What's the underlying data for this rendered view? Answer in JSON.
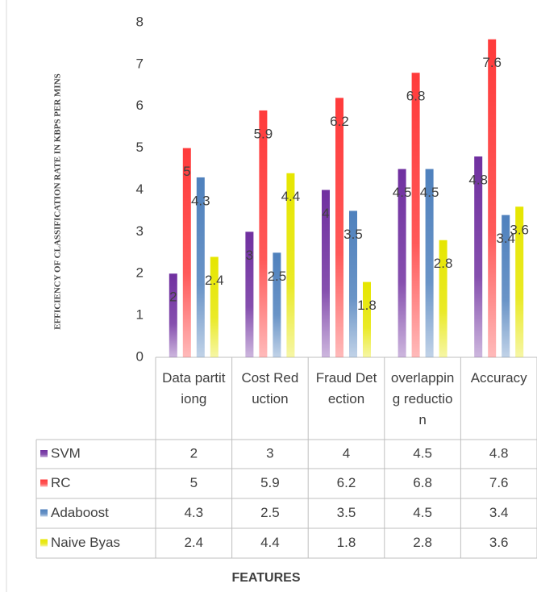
{
  "chart_data": {
    "type": "bar",
    "y_label": "EFFICIENCY OF CLASSIFICATION RATE IN KBPS PER MINS",
    "x_label": "FEATURES",
    "categories": [
      "Data partitiong",
      "Cost Reduction",
      "Fraud Detection",
      "overlapping reduction",
      "Accuracy"
    ],
    "series": [
      {
        "name": "SVM",
        "color": "#7030a0",
        "values": [
          2,
          3,
          4,
          4.5,
          4.8
        ]
      },
      {
        "name": "RC",
        "color": "#ff3b3b",
        "values": [
          5,
          5.9,
          6.2,
          6.8,
          7.6
        ]
      },
      {
        "name": "Adaboost",
        "color": "#4f81bd",
        "values": [
          4.3,
          2.5,
          3.5,
          4.5,
          3.4
        ]
      },
      {
        "name": "Naive Byas",
        "color": "#e6e600",
        "values": [
          2.4,
          4.4,
          1.8,
          2.8,
          3.6
        ]
      }
    ],
    "ylim": [
      0,
      8
    ],
    "yticks": [
      0,
      1,
      2,
      3,
      4,
      5,
      6,
      7,
      8
    ],
    "grid": false
  }
}
